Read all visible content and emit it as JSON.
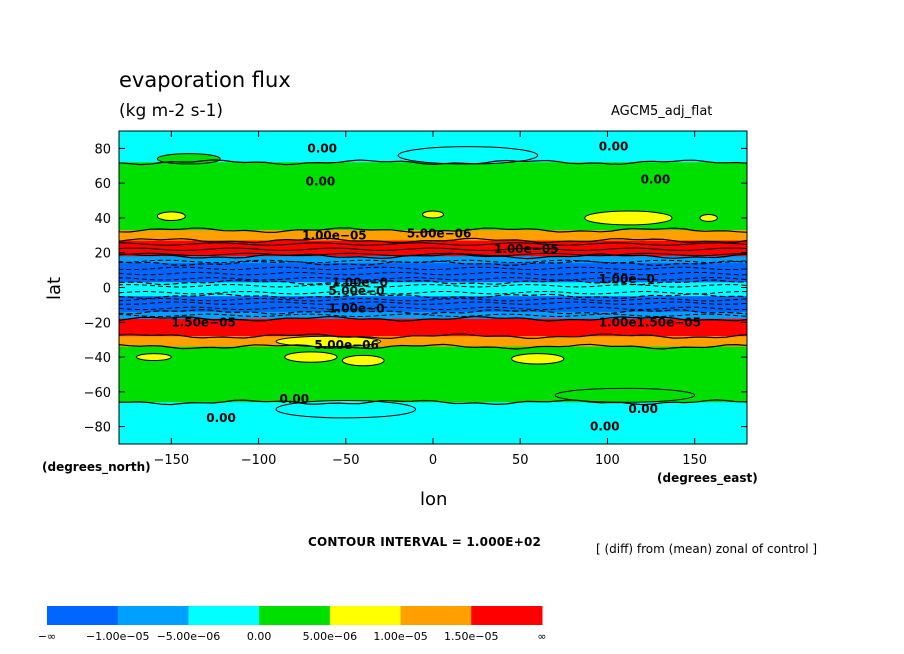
{
  "chart_data": {
    "type": "heatmap",
    "title": "evaporation flux",
    "subtitle": "(kg m-2 s-1)",
    "model_label": "AGCM5_adj_flat",
    "xlabel": "lon",
    "ylabel": "lat",
    "x_unit": "(degrees_east)",
    "y_unit": "(degrees_north)",
    "xlim": [
      -180,
      180
    ],
    "ylim": [
      -90,
      90
    ],
    "x_ticks": [
      -150,
      -100,
      -50,
      0,
      50,
      100,
      150
    ],
    "x_tick_labels": [
      "−150",
      "−100",
      "−50",
      "0",
      "50",
      "100",
      "150"
    ],
    "y_ticks": [
      80,
      60,
      40,
      20,
      0,
      -20,
      -40,
      -60,
      -80
    ],
    "y_tick_labels": [
      "80",
      "60",
      "40",
      "20",
      "0",
      "−20",
      "−40",
      "−60",
      "−80"
    ],
    "contour_interval": "CONTOUR INTERVAL = 1.000E+02",
    "note": "[ (diff) from (mean) zonal of control ]",
    "levels": [
      {
        "label": "−∞",
        "color": "#0066ff"
      },
      {
        "label": "−1.00e−05",
        "color": "#00a0ff"
      },
      {
        "label": "−5.00e−06",
        "color": "#00ffff"
      },
      {
        "label": "0.00",
        "color": "#00e000"
      },
      {
        "label": "5.00e−06",
        "color": "#ffff00"
      },
      {
        "label": "1.00e−05",
        "color": "#ffa000"
      },
      {
        "label": "1.50e−05",
        "color": "#ff0000"
      },
      {
        "label": "∞",
        "color": null
      }
    ],
    "lat_bands": [
      {
        "lat_from": 90,
        "lat_to": 72,
        "class": "-5.00e-06..0.00",
        "color": "#00ffff"
      },
      {
        "lat_from": 72,
        "lat_to": 33,
        "class": "0.00..5.00e-06",
        "color": "#00e000"
      },
      {
        "lat_from": 33,
        "lat_to": 27,
        "class": "1.00e-05..1.50e-05",
        "color": "#ffa000"
      },
      {
        "lat_from": 27,
        "lat_to": 18,
        "class": ">1.50e-05",
        "color": "#ff0000"
      },
      {
        "lat_from": 18,
        "lat_to": 14,
        "class": "-1.00e-05..-5.00e-06",
        "color": "#00a0ff"
      },
      {
        "lat_from": 14,
        "lat_to": 3,
        "class": "<-1.00e-05",
        "color": "#0066ff"
      },
      {
        "lat_from": 3,
        "lat_to": -5,
        "class": "-5.00e-06..0.00",
        "color": "#00ffff"
      },
      {
        "lat_from": -5,
        "lat_to": -14,
        "class": "<-1.00e-05",
        "color": "#0066ff"
      },
      {
        "lat_from": -14,
        "lat_to": -18,
        "class": "-1.00e-05..-5.00e-06",
        "color": "#00a0ff"
      },
      {
        "lat_from": -18,
        "lat_to": -28,
        "class": ">1.50e-05",
        "color": "#ff0000"
      },
      {
        "lat_from": -28,
        "lat_to": -34,
        "class": "1.00e-05..1.50e-05",
        "color": "#ffa000"
      },
      {
        "lat_from": -34,
        "lat_to": -66,
        "class": "0.00..5.00e-06",
        "color": "#00e000"
      },
      {
        "lat_from": -66,
        "lat_to": -90,
        "class": "-5.00e-06..0.00",
        "color": "#00ffff"
      }
    ],
    "blobs": [
      {
        "lon": -140,
        "lat": 74,
        "dlon": 18,
        "dlat": 3,
        "color": "#00e000"
      },
      {
        "lon": 20,
        "lat": 76,
        "dlon": 40,
        "dlat": 5,
        "color": "#00ffff"
      },
      {
        "lon": -150,
        "lat": 41,
        "dlon": 8,
        "dlat": 2.5,
        "color": "#ffff00"
      },
      {
        "lon": 0,
        "lat": 42,
        "dlon": 6,
        "dlat": 2,
        "color": "#ffff00"
      },
      {
        "lon": 112,
        "lat": 40,
        "dlon": 25,
        "dlat": 4,
        "color": "#ffff00"
      },
      {
        "lon": 158,
        "lat": 40,
        "dlon": 5,
        "dlat": 2,
        "color": "#ffff00"
      },
      {
        "lon": -70,
        "lat": -40,
        "dlon": 15,
        "dlat": 3,
        "color": "#ffff00"
      },
      {
        "lon": -40,
        "lat": -42,
        "dlon": 12,
        "dlat": 3,
        "color": "#ffff00"
      },
      {
        "lon": 60,
        "lat": -41,
        "dlon": 15,
        "dlat": 3,
        "color": "#ffff00"
      },
      {
        "lon": -160,
        "lat": -40,
        "dlon": 10,
        "dlat": 2,
        "color": "#ffff00"
      },
      {
        "lon": -60,
        "lat": -31,
        "dlon": 30,
        "dlat": 3,
        "color": "#ffff00"
      },
      {
        "lon": -50,
        "lat": -70,
        "dlon": 40,
        "dlat": 5,
        "color": "#00ffff"
      },
      {
        "lon": 110,
        "lat": -62,
        "dlon": 40,
        "dlat": 4,
        "color": "#00e000"
      }
    ],
    "contour_labels": [
      {
        "text": "0.00",
        "lon": -72,
        "lat": 80
      },
      {
        "text": "0.00",
        "lon": 95,
        "lat": 81
      },
      {
        "text": "0.00",
        "lon": -73,
        "lat": 61
      },
      {
        "text": "0.00",
        "lon": 119,
        "lat": 62
      },
      {
        "text": "1.00e−05",
        "lon": -75,
        "lat": 30
      },
      {
        "text": "5.00e−06",
        "lon": -15,
        "lat": 31
      },
      {
        "text": "1.00e−05",
        "lon": 35,
        "lat": 22
      },
      {
        "text": "1.00e−0",
        "lon": 95,
        "lat": 5
      },
      {
        "text": "1.00e−0",
        "lon": -58,
        "lat": 3
      },
      {
        "text": "5.00e−0",
        "lon": -60,
        "lat": -2
      },
      {
        "text": "1.00e−0",
        "lon": -60,
        "lat": -12
      },
      {
        "text": "1.50e−05",
        "lon": -150,
        "lat": -20
      },
      {
        "text": "1.00e1.50e−05",
        "lon": 95,
        "lat": -20
      },
      {
        "text": "5.00e−06",
        "lon": -68,
        "lat": -33
      },
      {
        "text": "0.00",
        "lon": -88,
        "lat": -64
      },
      {
        "text": "0.00",
        "lon": -130,
        "lat": -75
      },
      {
        "text": "0.00",
        "lon": 112,
        "lat": -70
      },
      {
        "text": "0.00",
        "lon": 90,
        "lat": -80
      }
    ]
  }
}
